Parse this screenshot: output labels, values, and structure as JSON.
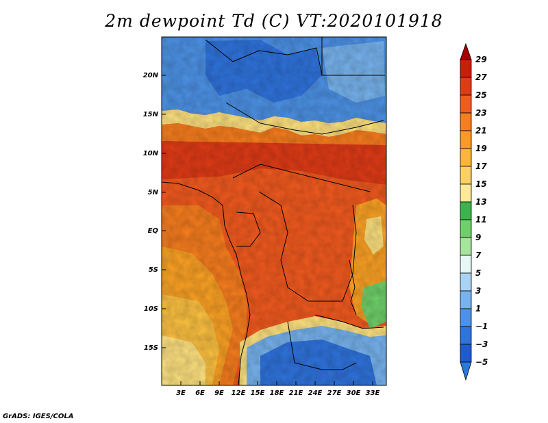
{
  "title": "2m dewpoint Td (C) VT:2020101918",
  "credit": "GrADS: IGES/COLA",
  "map": {
    "lat_labels": [
      "20N",
      "15N",
      "10N",
      "5N",
      "EQ",
      "5S",
      "10S",
      "15S"
    ],
    "lon_labels": [
      "3E",
      "6E",
      "9E",
      "12E",
      "15E",
      "18E",
      "21E",
      "24E",
      "27E",
      "30E",
      "33E"
    ]
  },
  "colorbar": {
    "labels": [
      "29",
      "27",
      "25",
      "23",
      "21",
      "19",
      "17",
      "15",
      "13",
      "11",
      "9",
      "7",
      "5",
      "3",
      "1",
      "−1",
      "−3",
      "−5"
    ],
    "colors": [
      "#a50000",
      "#c81e0a",
      "#e03b16",
      "#f25a1f",
      "#f77d1e",
      "#fca224",
      "#fdc141",
      "#fee17f",
      "#fef7b4",
      "#3cb44b",
      "#6fd06a",
      "#a6e59c",
      "#e6f7f6",
      "#a8d3f5",
      "#77b3ee",
      "#4d92e6",
      "#2f73dc",
      "#1f5ad0",
      "#2a78d8"
    ]
  }
}
